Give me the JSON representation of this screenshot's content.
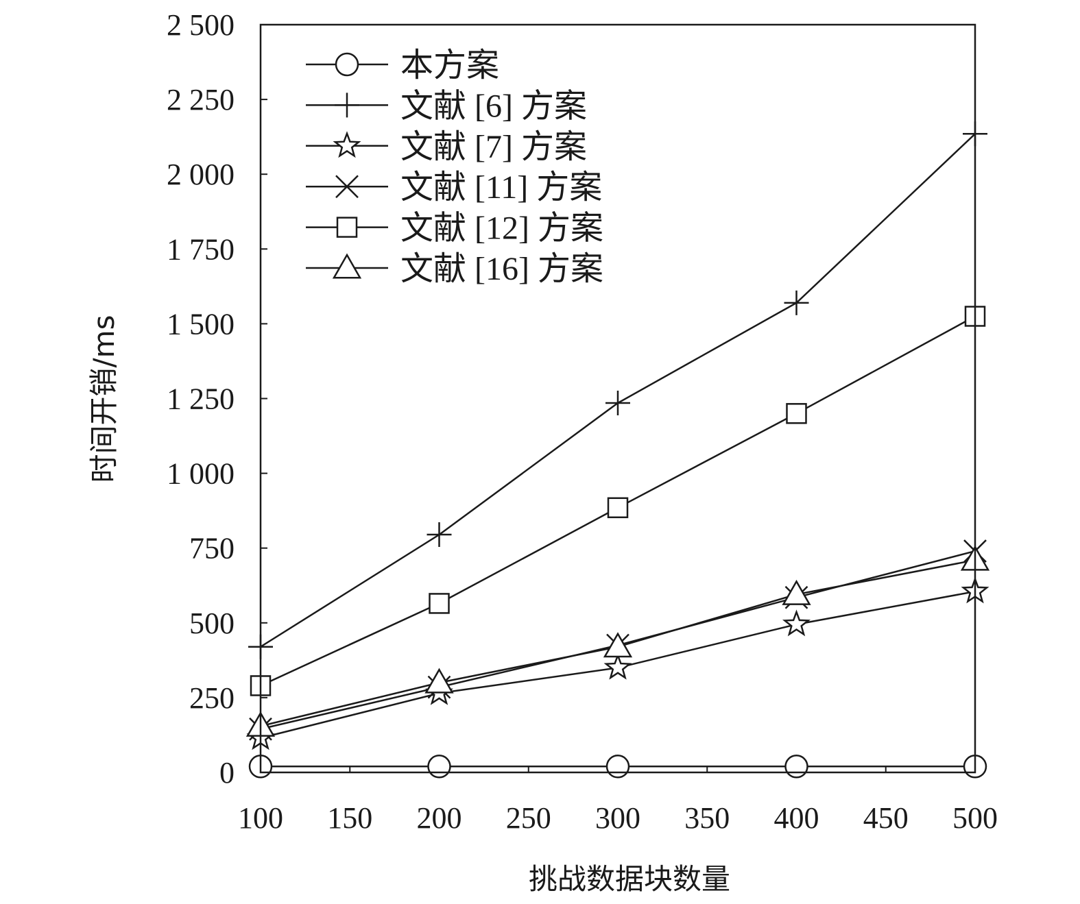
{
  "chart_data": {
    "type": "line",
    "title": "",
    "xlabel": "挑战数据块数量",
    "ylabel": "时间开销/ms",
    "x": [
      100,
      200,
      300,
      400,
      500
    ],
    "xlim": [
      100,
      500
    ],
    "ylim": [
      0,
      2500
    ],
    "x_ticks": [
      "100",
      "150",
      "200",
      "250",
      "300",
      "350",
      "400",
      "450",
      "500"
    ],
    "y_ticks": [
      "0",
      "250",
      "500",
      "750",
      "1 000",
      "1 250",
      "1 500",
      "1 750",
      "2 000",
      "2 250",
      "2 500"
    ],
    "grid": false,
    "legend_position": "top-left",
    "series": [
      {
        "name": "本方案",
        "marker": "circle",
        "values": [
          20,
          20,
          20,
          20,
          20
        ]
      },
      {
        "name": "文献 [6] 方案",
        "marker": "plus",
        "values": [
          420,
          795,
          1235,
          1570,
          2135
        ]
      },
      {
        "name": "文献 [7] 方案",
        "marker": "star",
        "values": [
          115,
          265,
          350,
          495,
          605
        ]
      },
      {
        "name": "文献 [11] 方案",
        "marker": "x",
        "values": [
          145,
          285,
          425,
          585,
          740
        ]
      },
      {
        "name": "文献 [12] 方案",
        "marker": "square",
        "values": [
          290,
          565,
          885,
          1200,
          1525
        ]
      },
      {
        "name": "文献 [16] 方案",
        "marker": "triangle",
        "values": [
          155,
          300,
          420,
          595,
          710
        ]
      }
    ]
  }
}
